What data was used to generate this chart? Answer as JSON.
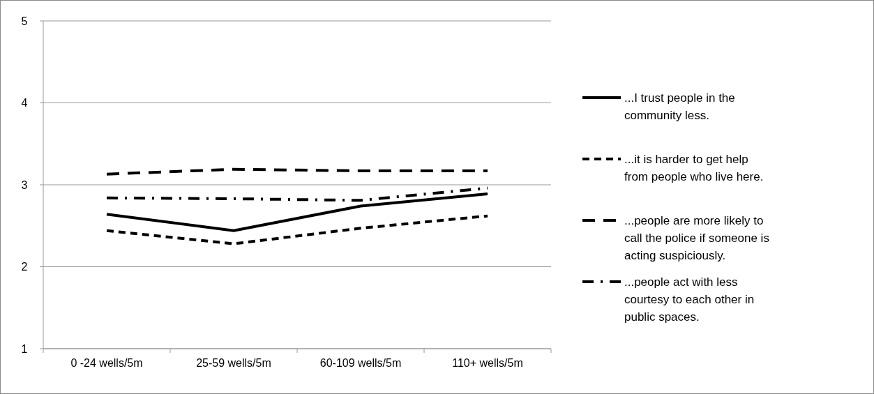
{
  "chart_data": {
    "type": "line",
    "categories": [
      "0 -24 wells/5m",
      "25-59 wells/5m",
      "60-109 wells/5m",
      "110+ wells/5m"
    ],
    "series": [
      {
        "name": "...I trust people in the community less.",
        "color": "#000000",
        "line_style": "solid",
        "values": [
          2.64,
          2.44,
          2.74,
          2.89
        ]
      },
      {
        "name": "...it is harder to get help from people who live here.",
        "color": "#000000",
        "line_style": "dashed",
        "values": [
          2.44,
          2.28,
          2.47,
          2.62
        ]
      },
      {
        "name": "...people are more likely to call the police if someone is acting suspiciously.",
        "color": "#000000",
        "line_style": "longdash",
        "values": [
          3.13,
          3.19,
          3.17,
          3.17
        ]
      },
      {
        "name": "...people act with less courtesy to each other in public spaces.",
        "color": "#000000",
        "line_style": "dashdot",
        "values": [
          2.84,
          2.83,
          2.81,
          2.96
        ]
      }
    ],
    "ylim": [
      1,
      5
    ],
    "yticks": [
      1,
      2,
      3,
      4,
      5
    ],
    "grid": "y",
    "legend": "right"
  }
}
